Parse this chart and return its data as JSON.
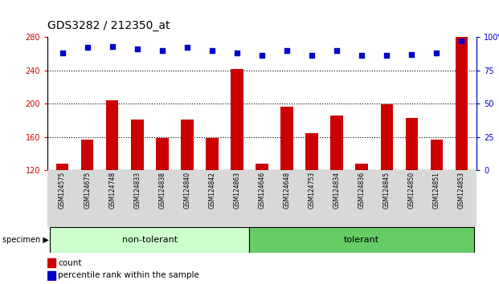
{
  "title": "GDS3282 / 212350_at",
  "samples": [
    "GSM124575",
    "GSM124675",
    "GSM124748",
    "GSM124833",
    "GSM124838",
    "GSM124840",
    "GSM124842",
    "GSM124863",
    "GSM124646",
    "GSM124648",
    "GSM124753",
    "GSM124834",
    "GSM124836",
    "GSM124845",
    "GSM124850",
    "GSM124851",
    "GSM124853"
  ],
  "counts": [
    128,
    157,
    204,
    181,
    159,
    181,
    159,
    242,
    128,
    196,
    165,
    186,
    128,
    199,
    183,
    157,
    280
  ],
  "percentile_ranks": [
    88,
    92,
    93,
    91,
    90,
    92,
    90,
    88,
    86,
    90,
    86,
    90,
    86,
    86,
    87,
    88,
    97
  ],
  "non_tolerant_count": 8,
  "tolerant_count": 9,
  "group_colors": [
    "#ccffcc",
    "#66cc66"
  ],
  "bar_color": "#cc0000",
  "dot_color": "#0000cc",
  "ylim_left": [
    120,
    280
  ],
  "ylim_right": [
    0,
    100
  ],
  "yticks_left": [
    120,
    160,
    200,
    240,
    280
  ],
  "yticks_right": [
    0,
    25,
    50,
    75,
    100
  ],
  "background_color": "#ffffff",
  "title_fontsize": 10,
  "tick_fontsize": 7,
  "sample_fontsize": 5.5,
  "group_fontsize": 8,
  "legend_fontsize": 7.5
}
